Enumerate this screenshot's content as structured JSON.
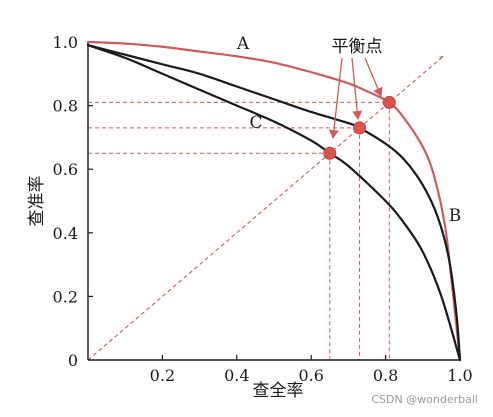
{
  "chart_data": {
    "type": "line",
    "xlabel": "查全率",
    "ylabel": "查准率",
    "xlim": [
      0,
      1
    ],
    "ylim": [
      0,
      1
    ],
    "x_ticks": [
      "0.2",
      "0.4",
      "0.6",
      "0.8",
      "1.0"
    ],
    "y_ticks": [
      "0",
      "0.2",
      "0.4",
      "0.6",
      "0.8",
      "1.0"
    ],
    "diagonal_reference": true,
    "series": [
      {
        "name": "A",
        "color": "#cf5b5b",
        "x": [
          0,
          0.1,
          0.2,
          0.3,
          0.4,
          0.5,
          0.6,
          0.7,
          0.75,
          0.81,
          0.85,
          0.9,
          0.93,
          0.96,
          0.98,
          1.0
        ],
        "y": [
          1.0,
          0.995,
          0.985,
          0.97,
          0.955,
          0.935,
          0.905,
          0.87,
          0.845,
          0.81,
          0.76,
          0.67,
          0.58,
          0.42,
          0.22,
          0
        ]
      },
      {
        "name": "B",
        "color": "#1a1a1a",
        "x": [
          0,
          0.1,
          0.2,
          0.3,
          0.4,
          0.5,
          0.6,
          0.7,
          0.73,
          0.8,
          0.85,
          0.9,
          0.94,
          0.97,
          0.99,
          1.0
        ],
        "y": [
          0.99,
          0.96,
          0.93,
          0.9,
          0.86,
          0.82,
          0.78,
          0.745,
          0.73,
          0.68,
          0.63,
          0.55,
          0.45,
          0.32,
          0.15,
          0
        ]
      },
      {
        "name": "C",
        "color": "#1a1a1a",
        "x": [
          0,
          0.1,
          0.2,
          0.3,
          0.4,
          0.5,
          0.6,
          0.65,
          0.7,
          0.8,
          0.85,
          0.9,
          0.95,
          1.0
        ],
        "y": [
          0.99,
          0.95,
          0.9,
          0.85,
          0.8,
          0.75,
          0.69,
          0.65,
          0.61,
          0.5,
          0.43,
          0.34,
          0.2,
          0
        ]
      }
    ],
    "break_even_points": [
      {
        "curve": "A",
        "x": 0.81,
        "y": 0.81
      },
      {
        "curve": "B",
        "x": 0.73,
        "y": 0.73
      },
      {
        "curve": "C",
        "x": 0.65,
        "y": 0.65
      }
    ],
    "annotation": "平衡点",
    "colors": {
      "accent": "#cf5b5b",
      "ink": "#1a1a1a"
    }
  },
  "watermark": "CSDN @wonderball"
}
